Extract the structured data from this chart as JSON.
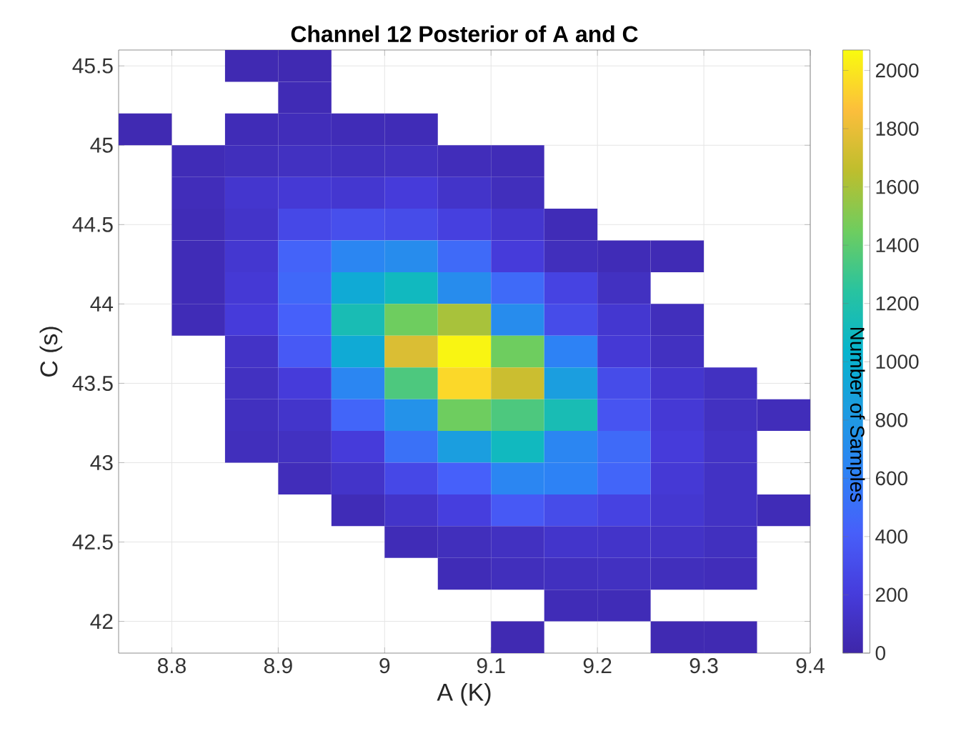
{
  "chart_data": {
    "type": "heatmap",
    "title": "Channel 12  Posterior of A and C",
    "xlabel": "A (K)",
    "ylabel": "C (s)",
    "clabel": "Number of Samples",
    "xlim": [
      8.75,
      9.4
    ],
    "xticks": [
      8.8,
      8.9,
      9,
      9.1,
      9.2,
      9.3,
      9.4
    ],
    "ylim": [
      41.8,
      45.6
    ],
    "yticks": [
      42,
      42.5,
      43,
      43.5,
      44,
      44.5,
      45,
      45.5
    ],
    "clim": [
      0,
      2070
    ],
    "cticks": [
      0,
      200,
      400,
      600,
      800,
      1000,
      1200,
      1400,
      1600,
      1800,
      2000
    ],
    "grid": true,
    "cells": [
      [
        null,
        null,
        40,
        40,
        null,
        null,
        null,
        null,
        null,
        null,
        null,
        null,
        null
      ],
      [
        null,
        null,
        null,
        50,
        null,
        null,
        null,
        null,
        null,
        null,
        null,
        null,
        null
      ],
      [
        40,
        null,
        60,
        70,
        60,
        60,
        null,
        null,
        null,
        null,
        null,
        null,
        null
      ],
      [
        null,
        60,
        80,
        100,
        90,
        100,
        70,
        60,
        null,
        null,
        null,
        null,
        null
      ],
      [
        null,
        70,
        150,
        180,
        160,
        200,
        130,
        80,
        null,
        null,
        null,
        null,
        null
      ],
      [
        null,
        60,
        130,
        280,
        320,
        300,
        230,
        150,
        60,
        null,
        null,
        null,
        null
      ],
      [
        null,
        60,
        160,
        440,
        650,
        700,
        480,
        200,
        80,
        60,
        50,
        null,
        null
      ],
      [
        null,
        60,
        180,
        470,
        950,
        1100,
        700,
        480,
        250,
        100,
        null,
        null,
        null
      ],
      [
        null,
        60,
        200,
        420,
        1150,
        1450,
        1600,
        700,
        300,
        160,
        80,
        null,
        null
      ],
      [
        null,
        null,
        120,
        380,
        950,
        1750,
        2050,
        1450,
        620,
        180,
        100,
        null,
        null
      ],
      [
        null,
        null,
        100,
        200,
        650,
        1350,
        1950,
        1700,
        850,
        300,
        150,
        100,
        null
      ],
      [
        null,
        null,
        90,
        140,
        450,
        750,
        1450,
        1350,
        1150,
        350,
        180,
        100,
        70
      ],
      [
        null,
        null,
        80,
        100,
        200,
        520,
        850,
        1100,
        650,
        480,
        200,
        120,
        null
      ],
      [
        null,
        null,
        null,
        70,
        130,
        280,
        420,
        650,
        620,
        450,
        180,
        110,
        null
      ],
      [
        null,
        null,
        null,
        null,
        60,
        130,
        220,
        380,
        300,
        240,
        160,
        110,
        60
      ],
      [
        null,
        null,
        null,
        null,
        null,
        60,
        80,
        100,
        140,
        130,
        120,
        90,
        null
      ],
      [
        null,
        null,
        null,
        null,
        null,
        null,
        60,
        80,
        90,
        100,
        80,
        70,
        null
      ],
      [
        null,
        null,
        null,
        null,
        null,
        null,
        null,
        null,
        60,
        60,
        null,
        null,
        null
      ],
      [
        null,
        null,
        null,
        null,
        null,
        null,
        null,
        40,
        null,
        null,
        40,
        40,
        null
      ]
    ]
  }
}
